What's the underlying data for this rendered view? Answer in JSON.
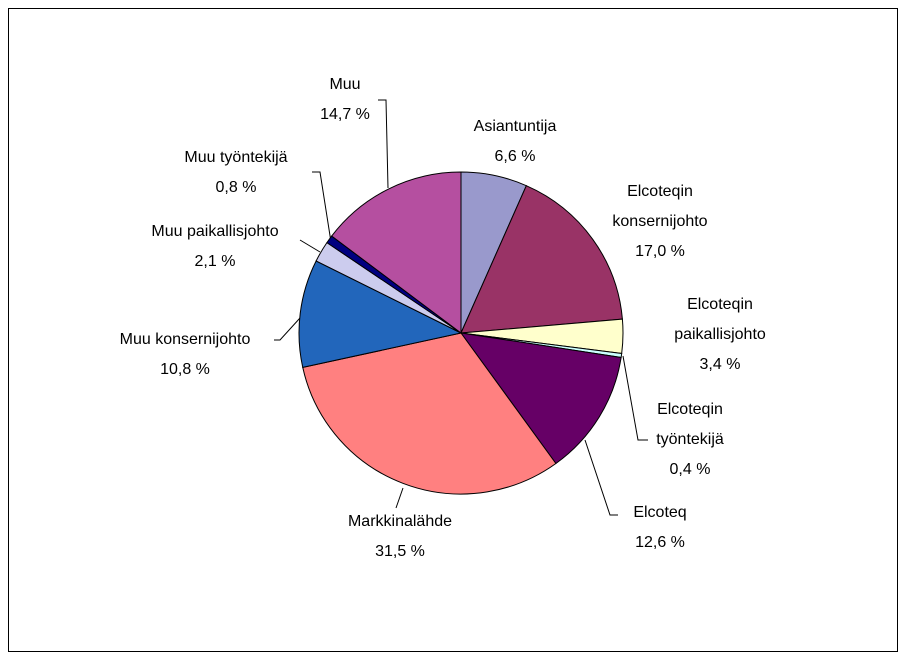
{
  "chart_data": {
    "type": "pie",
    "categories": [
      "Asiantuntija",
      "Elcoteqin konsernijohto",
      "Elcoteqin paikallisjohto",
      "Elcoteqin työntekijä",
      "Elcoteq",
      "Markkinalähde",
      "Muu konsernijohto",
      "Muu paikallisjohto",
      "Muu työntekijä",
      "Muu"
    ],
    "values": [
      6.6,
      17.0,
      3.4,
      0.4,
      12.6,
      31.5,
      10.8,
      2.1,
      0.8,
      14.7
    ],
    "value_labels": [
      "6,6 %",
      "17,0 %",
      "3,4 %",
      "0,4 %",
      "12,6 %",
      "31,5 %",
      "10,8 %",
      "2,1 %",
      "0,8 %",
      "14,7 %"
    ],
    "colors": [
      "#9999cc",
      "#993366",
      "#ffffcc",
      "#ccffff",
      "#660066",
      "#ff8080",
      "#2266bb",
      "#ccccee",
      "#000080",
      "#b54fa0"
    ]
  }
}
